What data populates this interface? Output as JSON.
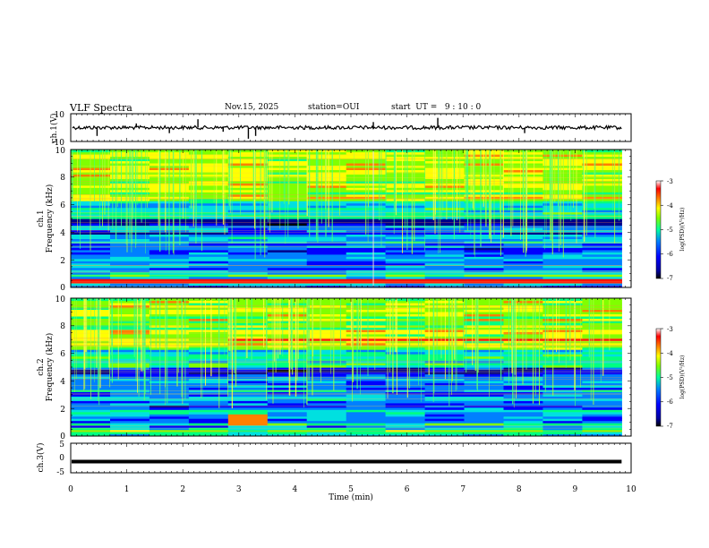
{
  "header": {
    "title": "VLF Spectra",
    "date": "Nov.15, 2025",
    "station": "station=OUI",
    "start_ut": "start  UT =   9 : 10 : 0"
  },
  "chart_data": [
    {
      "type": "line",
      "name": "ch.1 waveform",
      "ylabel": "ch.1(V)",
      "ylim": [
        -10,
        10
      ],
      "yticks": [
        "10",
        "-10"
      ],
      "x_range_min": [
        0,
        9.83
      ],
      "baseline": 0,
      "spikes": [
        {
          "x": 0.47,
          "y": -6
        },
        {
          "x": 1.17,
          "y": 3
        },
        {
          "x": 1.76,
          "y": -4
        },
        {
          "x": 2.27,
          "y": 6
        },
        {
          "x": 2.72,
          "y": -3
        },
        {
          "x": 3.17,
          "y": -8
        },
        {
          "x": 3.3,
          "y": -6
        },
        {
          "x": 5.4,
          "y": 4
        },
        {
          "x": 6.55,
          "y": 7
        },
        {
          "x": 8.1,
          "y": -4
        }
      ]
    },
    {
      "type": "heatmap",
      "name": "ch.1 spectrogram",
      "ylabel": "ch.1",
      "ylabel2": "Frequency (kHz)",
      "ylim": [
        0,
        10
      ],
      "yticks": [
        "0",
        "2",
        "4",
        "6",
        "8",
        "10"
      ],
      "x_range_min": [
        0,
        9.83
      ],
      "colorbar": {
        "label": "log(PSD)(V²/Hz)",
        "range": [
          -7,
          -3
        ],
        "ticks": [
          "-3",
          "-4",
          "-5",
          "-6",
          "-7"
        ]
      },
      "features": [
        {
          "desc": "dark band",
          "freq_khz": [
            4.6,
            4.85
          ],
          "level": -6.8
        },
        {
          "desc": "strong low-frequency emission",
          "freq_khz": [
            0.3,
            0.6
          ],
          "level": -3.5
        },
        {
          "desc": "gap",
          "time_min": [
            5.4,
            5.4
          ]
        }
      ]
    },
    {
      "type": "heatmap",
      "name": "ch.2 spectrogram",
      "ylabel": "ch.2",
      "ylabel2": "Frequency (kHz)",
      "ylim": [
        0,
        10
      ],
      "yticks": [
        "0",
        "2",
        "4",
        "6",
        "8",
        "10"
      ],
      "x_range_min": [
        0,
        9.83
      ],
      "colorbar": {
        "label": "log(PSD)(V²/Hz)",
        "range": [
          -7,
          -3
        ],
        "ticks": [
          "-3",
          "-4",
          "-5",
          "-6",
          "-7"
        ]
      },
      "features": [
        {
          "desc": "red emission line",
          "freq_khz": [
            6.8,
            7.0
          ],
          "time_min": [
            3.0,
            9.83
          ],
          "level": -3.5
        },
        {
          "desc": "enhanced emission",
          "freq_khz": [
            0.8,
            1.6
          ],
          "time_min": [
            2.6,
            3.6
          ],
          "level": -4
        }
      ]
    },
    {
      "type": "line",
      "name": "ch.3 waveform",
      "ylabel": "ch.3(V)",
      "ylim": [
        -5,
        5
      ],
      "yticks": [
        "5",
        "0",
        "-5"
      ],
      "x_range_min": [
        0,
        9.83
      ],
      "level": -1.2
    }
  ],
  "x_axis": {
    "label": "Time (min)",
    "ticks": [
      "0",
      "1",
      "2",
      "3",
      "4",
      "5",
      "6",
      "7",
      "8",
      "9",
      "10"
    ],
    "range": [
      0,
      10
    ]
  },
  "colors": {
    "colormap": [
      "#000000",
      "#00008b",
      "#0000ff",
      "#0080ff",
      "#00e0e0",
      "#00ff80",
      "#80ff00",
      "#ffff00",
      "#ff8000",
      "#ff0000",
      "#ffffff"
    ]
  }
}
